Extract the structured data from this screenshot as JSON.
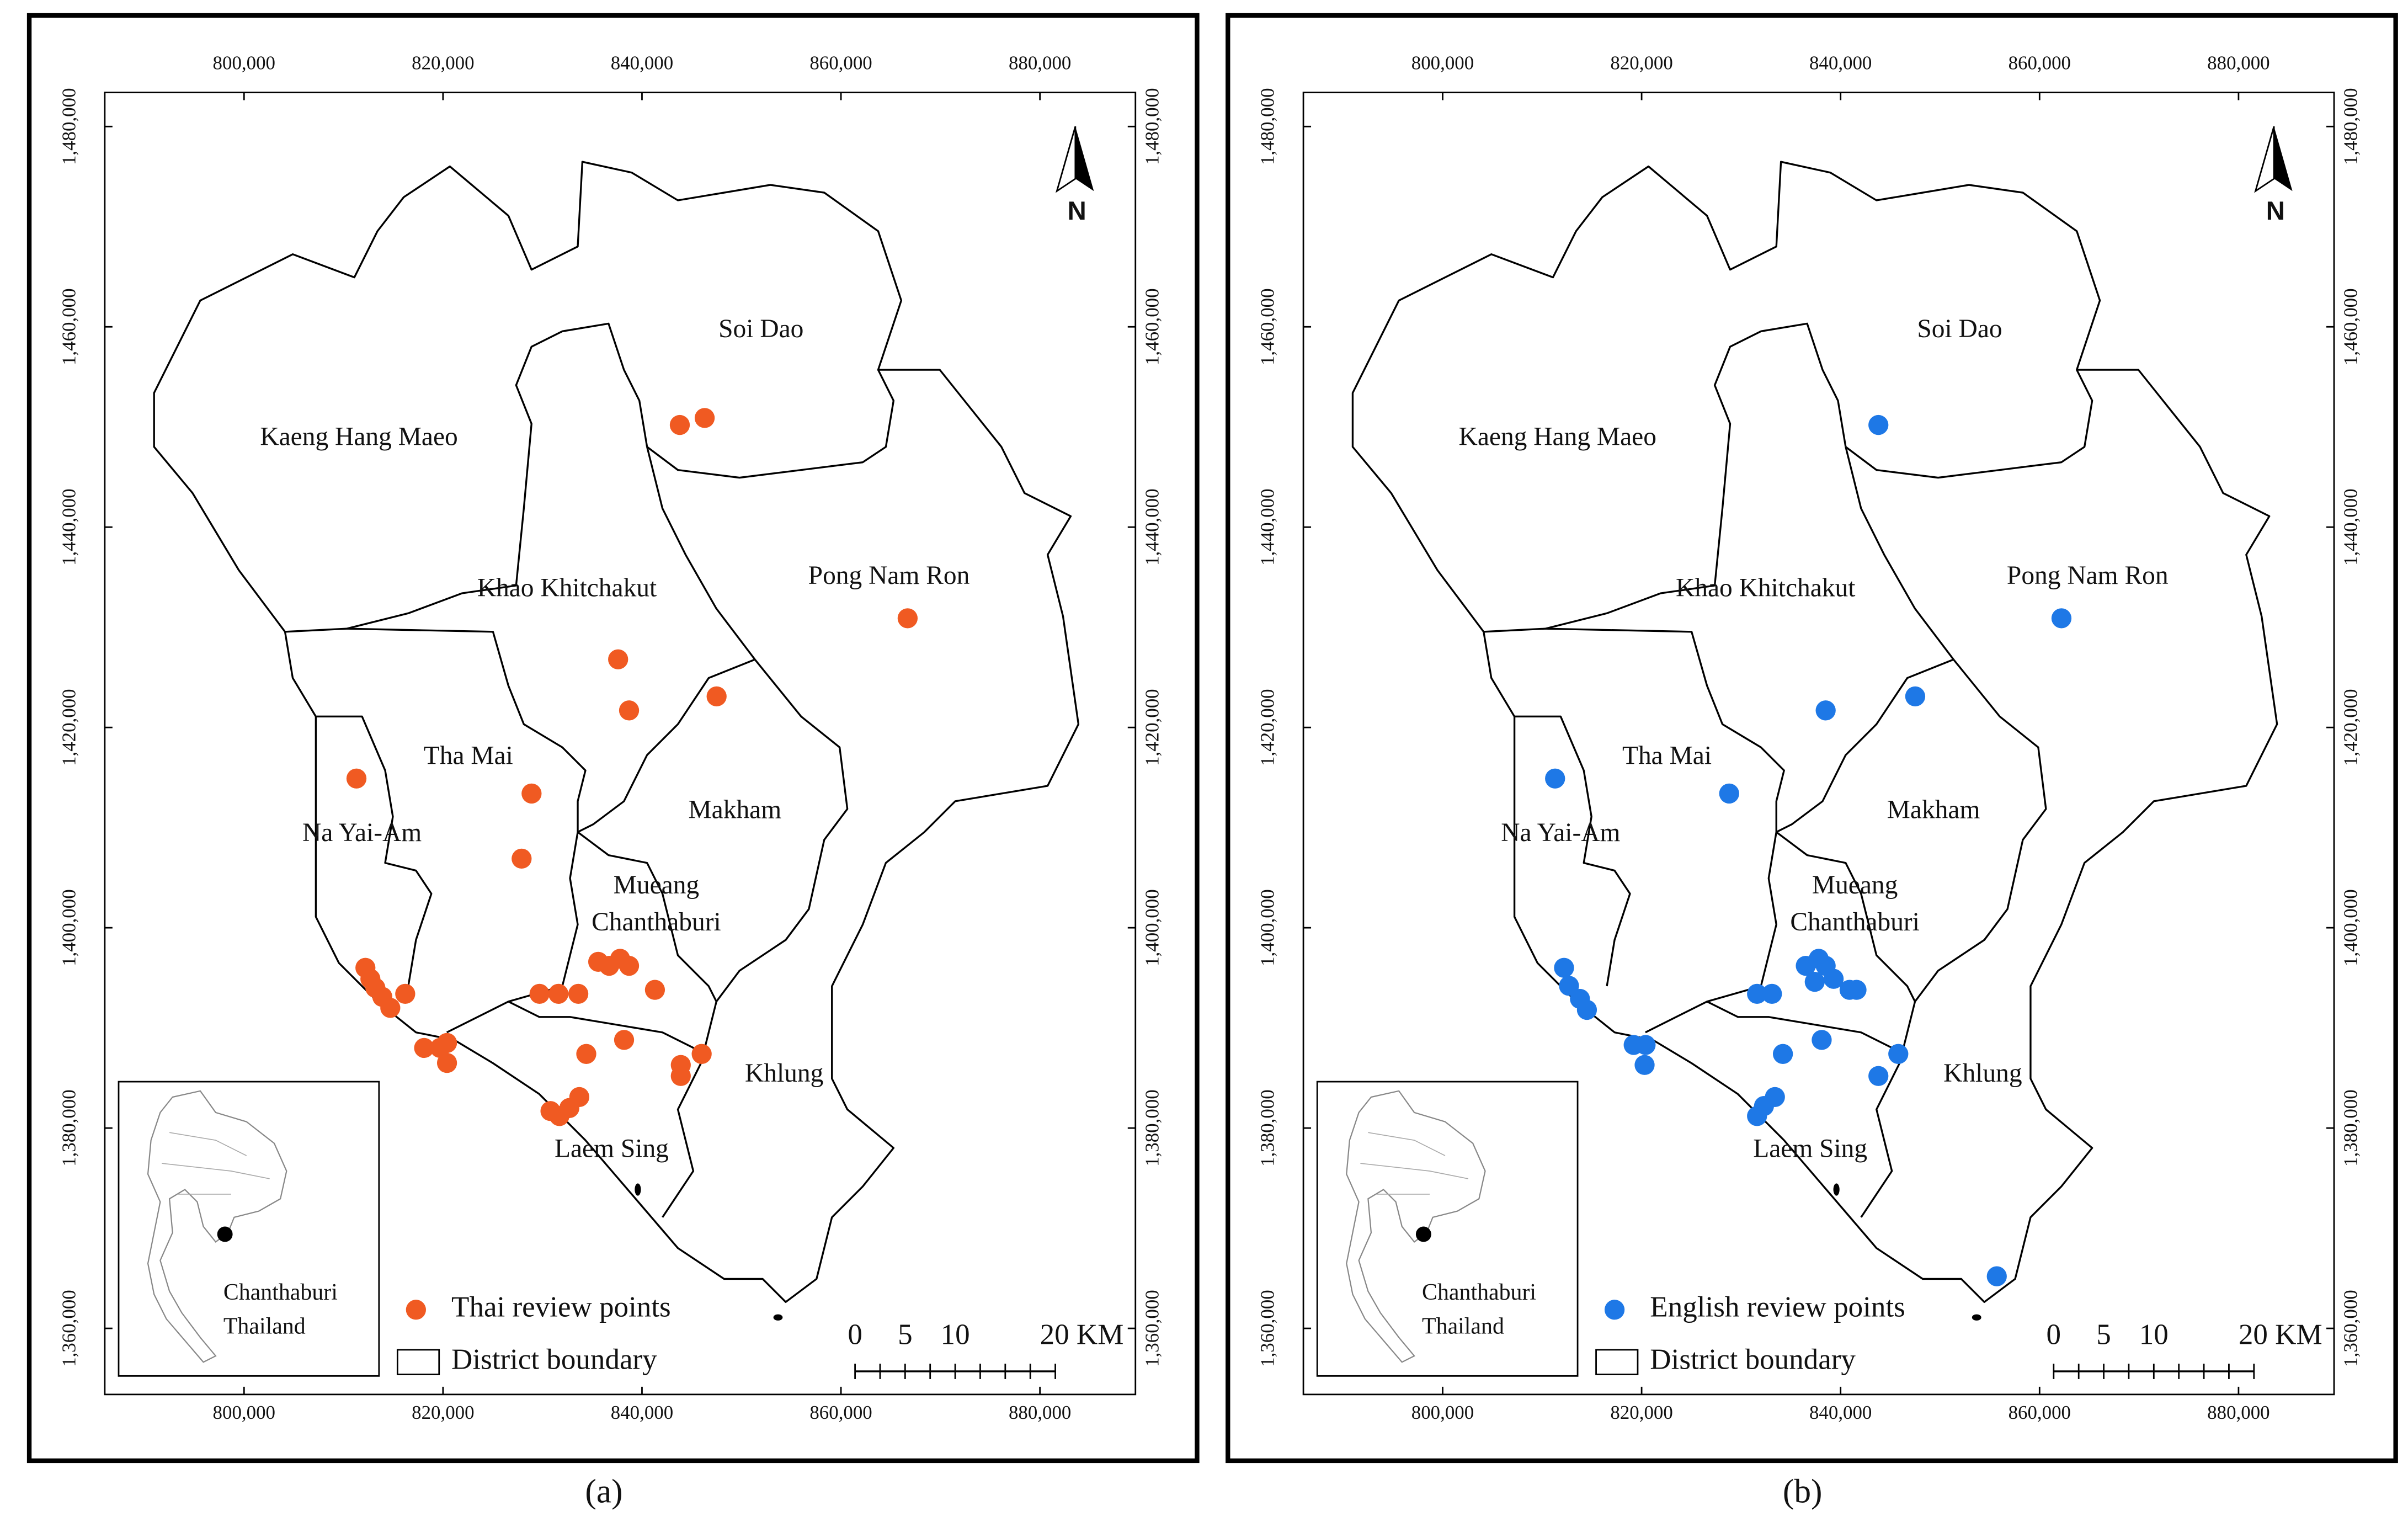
{
  "axes": {
    "xlim": [
      786000,
      889600
    ],
    "ylim": [
      1353400,
      1483400
    ],
    "xticks": [
      {
        "value": 800000,
        "label": "800,000"
      },
      {
        "value": 820000,
        "label": "820,000"
      },
      {
        "value": 840000,
        "label": "840,000"
      },
      {
        "value": 860000,
        "label": "860,000"
      },
      {
        "value": 880000,
        "label": "880,000"
      }
    ],
    "yticks": [
      {
        "value": 1360000,
        "label": "1,360,000"
      },
      {
        "value": 1380000,
        "label": "1,380,000"
      },
      {
        "value": 1400000,
        "label": "1,400,000"
      },
      {
        "value": 1420000,
        "label": "1,420,000"
      },
      {
        "value": 1440000,
        "label": "1,440,000"
      },
      {
        "value": 1460000,
        "label": "1,460,000"
      },
      {
        "value": 1480000,
        "label": "1,480,000"
      }
    ]
  },
  "districts": [
    [
      "Soi Dao"
    ],
    [
      "Kaeng Hang Maeo"
    ],
    [
      "Pong Nam Ron"
    ],
    [
      "Khao Khitchakut"
    ],
    [
      "Tha Mai"
    ],
    [
      "Makham"
    ],
    [
      "Na Yai-Am"
    ],
    [
      "Mueang",
      "Chanthaburi"
    ],
    [
      "Khlung"
    ],
    [
      "Laem Sing"
    ]
  ],
  "north": "N",
  "inset_label": [
    "Chanthaburi",
    "Thailand"
  ],
  "scale_bar": {
    "ticks": [
      0,
      5,
      10,
      {
        "value": 20,
        "label": "20 KM"
      }
    ]
  },
  "maps": [
    {
      "caption": "(a)",
      "color": "#f05a22",
      "legend": {
        "points": "Thai review points",
        "boundary": "District boundary"
      },
      "points": {
        "x": [
          843800,
          846300,
          866700,
          837600,
          838700,
          847500,
          811300,
          828900,
          827900,
          812200,
          812700,
          813200,
          813900,
          814700,
          816200,
          818100,
          819700,
          820400,
          820400,
          830800,
          831700,
          832700,
          833700,
          829700,
          831600,
          833600,
          836700,
          837800,
          838700,
          841300,
          838200,
          834400,
          843900,
          843900,
          846000,
          835600
        ],
        "y": [
          1450200,
          1450900,
          1430900,
          1426800,
          1421700,
          1423100,
          1414900,
          1413400,
          1406900,
          1396000,
          1394900,
          1394000,
          1393100,
          1392000,
          1393400,
          1388000,
          1388000,
          1388500,
          1386500,
          1381700,
          1381200,
          1382000,
          1383100,
          1393400,
          1393400,
          1393400,
          1396200,
          1396900,
          1396200,
          1393800,
          1388800,
          1387400,
          1386300,
          1385200,
          1387400,
          1396600
        ]
      }
    },
    {
      "caption": "(b)",
      "color": "#1e78e6",
      "legend": {
        "points": "English review points",
        "boundary": "District boundary"
      },
      "points": {
        "x": [
          843800,
          862200,
          838500,
          847500,
          811300,
          828800,
          812200,
          812700,
          813800,
          814500,
          819200,
          820400,
          820300,
          831600,
          832300,
          833400,
          831600,
          833100,
          836500,
          837800,
          838500,
          839300,
          837400,
          840900,
          841600,
          838100,
          834200,
          845800,
          843800,
          855700
        ],
        "y": [
          1450200,
          1430900,
          1421700,
          1423100,
          1414900,
          1413400,
          1396000,
          1394200,
          1392900,
          1391800,
          1388300,
          1388300,
          1386300,
          1381200,
          1382200,
          1383100,
          1393400,
          1393400,
          1396200,
          1396900,
          1396200,
          1394900,
          1394600,
          1393800,
          1393800,
          1388800,
          1387400,
          1387400,
          1385200,
          1365200
        ]
      }
    }
  ]
}
